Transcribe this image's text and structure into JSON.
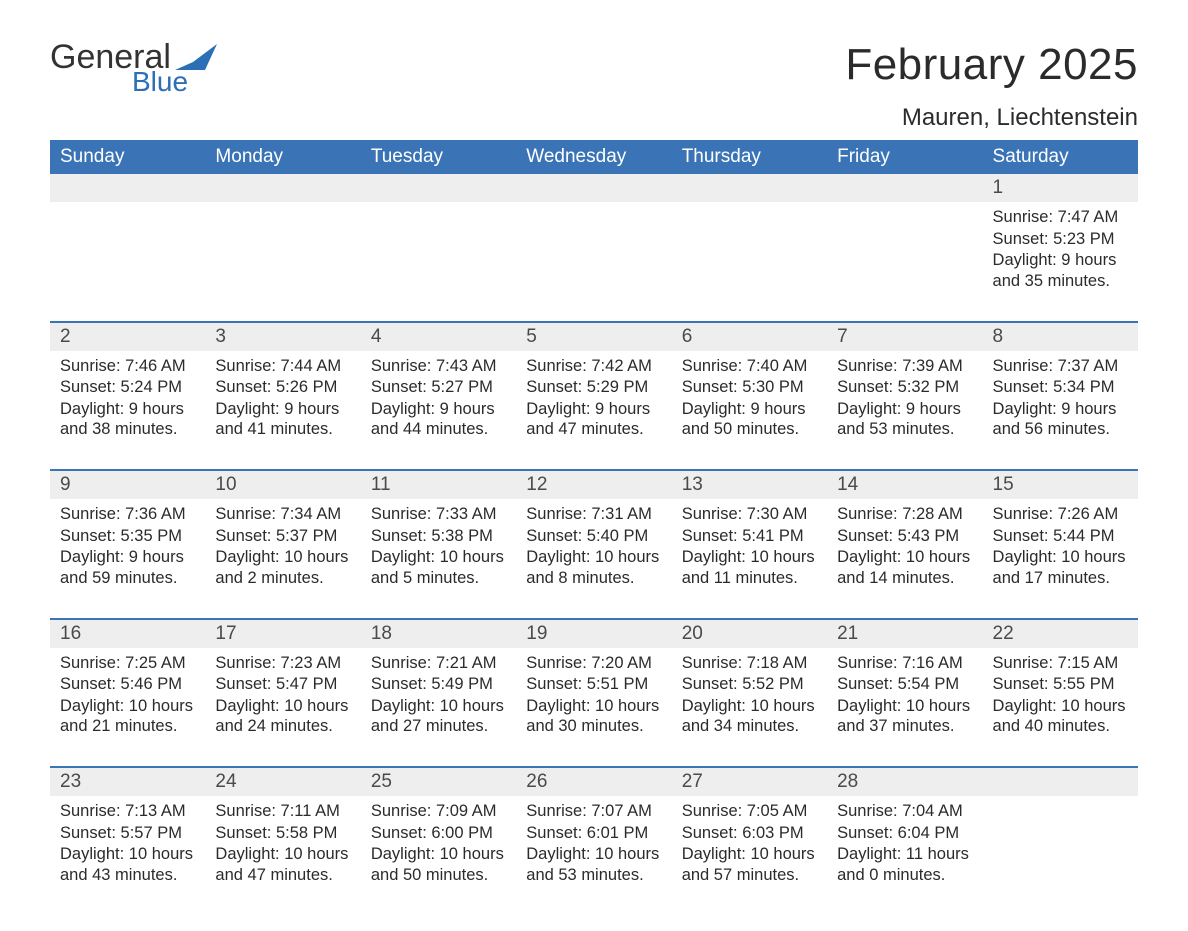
{
  "brand": {
    "word1": "General",
    "word2": "Blue",
    "accent_color": "#2b6fb6",
    "flag_color": "#2b6fb6"
  },
  "title": "February 2025",
  "location": "Mauren, Liechtenstein",
  "colors": {
    "header_bg": "#3a74b6",
    "header_text": "#ffffff",
    "daynum_bg": "#eeeeee",
    "week_border": "#3a74b6",
    "text": "#2b2b2b"
  },
  "weekdays": [
    "Sunday",
    "Monday",
    "Tuesday",
    "Wednesday",
    "Thursday",
    "Friday",
    "Saturday"
  ],
  "weeks": [
    [
      {
        "num": "",
        "lines": []
      },
      {
        "num": "",
        "lines": []
      },
      {
        "num": "",
        "lines": []
      },
      {
        "num": "",
        "lines": []
      },
      {
        "num": "",
        "lines": []
      },
      {
        "num": "",
        "lines": []
      },
      {
        "num": "1",
        "lines": [
          "Sunrise: 7:47 AM",
          "Sunset: 5:23 PM",
          "Daylight: 9 hours and 35 minutes."
        ]
      }
    ],
    [
      {
        "num": "2",
        "lines": [
          "Sunrise: 7:46 AM",
          "Sunset: 5:24 PM",
          "Daylight: 9 hours and 38 minutes."
        ]
      },
      {
        "num": "3",
        "lines": [
          "Sunrise: 7:44 AM",
          "Sunset: 5:26 PM",
          "Daylight: 9 hours and 41 minutes."
        ]
      },
      {
        "num": "4",
        "lines": [
          "Sunrise: 7:43 AM",
          "Sunset: 5:27 PM",
          "Daylight: 9 hours and 44 minutes."
        ]
      },
      {
        "num": "5",
        "lines": [
          "Sunrise: 7:42 AM",
          "Sunset: 5:29 PM",
          "Daylight: 9 hours and 47 minutes."
        ]
      },
      {
        "num": "6",
        "lines": [
          "Sunrise: 7:40 AM",
          "Sunset: 5:30 PM",
          "Daylight: 9 hours and 50 minutes."
        ]
      },
      {
        "num": "7",
        "lines": [
          "Sunrise: 7:39 AM",
          "Sunset: 5:32 PM",
          "Daylight: 9 hours and 53 minutes."
        ]
      },
      {
        "num": "8",
        "lines": [
          "Sunrise: 7:37 AM",
          "Sunset: 5:34 PM",
          "Daylight: 9 hours and 56 minutes."
        ]
      }
    ],
    [
      {
        "num": "9",
        "lines": [
          "Sunrise: 7:36 AM",
          "Sunset: 5:35 PM",
          "Daylight: 9 hours and 59 minutes."
        ]
      },
      {
        "num": "10",
        "lines": [
          "Sunrise: 7:34 AM",
          "Sunset: 5:37 PM",
          "Daylight: 10 hours and 2 minutes."
        ]
      },
      {
        "num": "11",
        "lines": [
          "Sunrise: 7:33 AM",
          "Sunset: 5:38 PM",
          "Daylight: 10 hours and 5 minutes."
        ]
      },
      {
        "num": "12",
        "lines": [
          "Sunrise: 7:31 AM",
          "Sunset: 5:40 PM",
          "Daylight: 10 hours and 8 minutes."
        ]
      },
      {
        "num": "13",
        "lines": [
          "Sunrise: 7:30 AM",
          "Sunset: 5:41 PM",
          "Daylight: 10 hours and 11 minutes."
        ]
      },
      {
        "num": "14",
        "lines": [
          "Sunrise: 7:28 AM",
          "Sunset: 5:43 PM",
          "Daylight: 10 hours and 14 minutes."
        ]
      },
      {
        "num": "15",
        "lines": [
          "Sunrise: 7:26 AM",
          "Sunset: 5:44 PM",
          "Daylight: 10 hours and 17 minutes."
        ]
      }
    ],
    [
      {
        "num": "16",
        "lines": [
          "Sunrise: 7:25 AM",
          "Sunset: 5:46 PM",
          "Daylight: 10 hours and 21 minutes."
        ]
      },
      {
        "num": "17",
        "lines": [
          "Sunrise: 7:23 AM",
          "Sunset: 5:47 PM",
          "Daylight: 10 hours and 24 minutes."
        ]
      },
      {
        "num": "18",
        "lines": [
          "Sunrise: 7:21 AM",
          "Sunset: 5:49 PM",
          "Daylight: 10 hours and 27 minutes."
        ]
      },
      {
        "num": "19",
        "lines": [
          "Sunrise: 7:20 AM",
          "Sunset: 5:51 PM",
          "Daylight: 10 hours and 30 minutes."
        ]
      },
      {
        "num": "20",
        "lines": [
          "Sunrise: 7:18 AM",
          "Sunset: 5:52 PM",
          "Daylight: 10 hours and 34 minutes."
        ]
      },
      {
        "num": "21",
        "lines": [
          "Sunrise: 7:16 AM",
          "Sunset: 5:54 PM",
          "Daylight: 10 hours and 37 minutes."
        ]
      },
      {
        "num": "22",
        "lines": [
          "Sunrise: 7:15 AM",
          "Sunset: 5:55 PM",
          "Daylight: 10 hours and 40 minutes."
        ]
      }
    ],
    [
      {
        "num": "23",
        "lines": [
          "Sunrise: 7:13 AM",
          "Sunset: 5:57 PM",
          "Daylight: 10 hours and 43 minutes."
        ]
      },
      {
        "num": "24",
        "lines": [
          "Sunrise: 7:11 AM",
          "Sunset: 5:58 PM",
          "Daylight: 10 hours and 47 minutes."
        ]
      },
      {
        "num": "25",
        "lines": [
          "Sunrise: 7:09 AM",
          "Sunset: 6:00 PM",
          "Daylight: 10 hours and 50 minutes."
        ]
      },
      {
        "num": "26",
        "lines": [
          "Sunrise: 7:07 AM",
          "Sunset: 6:01 PM",
          "Daylight: 10 hours and 53 minutes."
        ]
      },
      {
        "num": "27",
        "lines": [
          "Sunrise: 7:05 AM",
          "Sunset: 6:03 PM",
          "Daylight: 10 hours and 57 minutes."
        ]
      },
      {
        "num": "28",
        "lines": [
          "Sunrise: 7:04 AM",
          "Sunset: 6:04 PM",
          "Daylight: 11 hours and 0 minutes."
        ]
      },
      {
        "num": "",
        "lines": []
      }
    ]
  ]
}
